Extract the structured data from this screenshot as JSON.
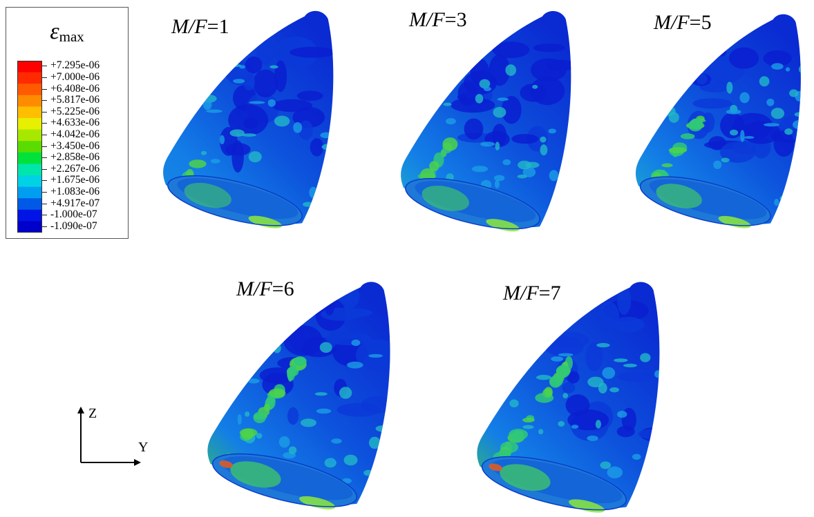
{
  "legend": {
    "symbol": "ε",
    "subscript": "max",
    "entries": [
      {
        "label": "+7.295e-06",
        "color": "#ff0000"
      },
      {
        "label": "+7.000e-06",
        "color": "#ff2a00"
      },
      {
        "label": "+6.408e-06",
        "color": "#ff5a00"
      },
      {
        "label": "+5.817e-06",
        "color": "#ff8c00"
      },
      {
        "label": "+5.225e-06",
        "color": "#ffbe00"
      },
      {
        "label": "+4.633e-06",
        "color": "#e6f000"
      },
      {
        "label": "+4.042e-06",
        "color": "#a8e800"
      },
      {
        "label": "+3.450e-06",
        "color": "#5adc00"
      },
      {
        "label": "+2.858e-06",
        "color": "#00e13c"
      },
      {
        "label": "+2.267e-06",
        "color": "#00e6aa"
      },
      {
        "label": "+1.675e-06",
        "color": "#00d2e6"
      },
      {
        "label": "+1.083e-06",
        "color": "#009ef0"
      },
      {
        "label": "+4.917e-07",
        "color": "#005ae6"
      },
      {
        "label": "-1.000e-07",
        "color": "#0014e6"
      },
      {
        "label": "-1.090e-07",
        "color": "#0000cc"
      }
    ]
  },
  "panels": [
    {
      "id": "mf1",
      "prefix": "M/F",
      "value": "=1",
      "green_level": 0.15
    },
    {
      "id": "mf3",
      "prefix": "M/F",
      "value": "=3",
      "green_level": 0.35
    },
    {
      "id": "mf5",
      "prefix": "M/F",
      "value": "=5",
      "green_level": 0.5
    },
    {
      "id": "mf6",
      "prefix": "M/F",
      "value": "=6",
      "green_level": 0.75
    },
    {
      "id": "mf7",
      "prefix": "M/F",
      "value": "=7",
      "green_level": 0.8
    }
  ],
  "axes": {
    "vertical_label": "Z",
    "horizontal_label": "Y"
  }
}
